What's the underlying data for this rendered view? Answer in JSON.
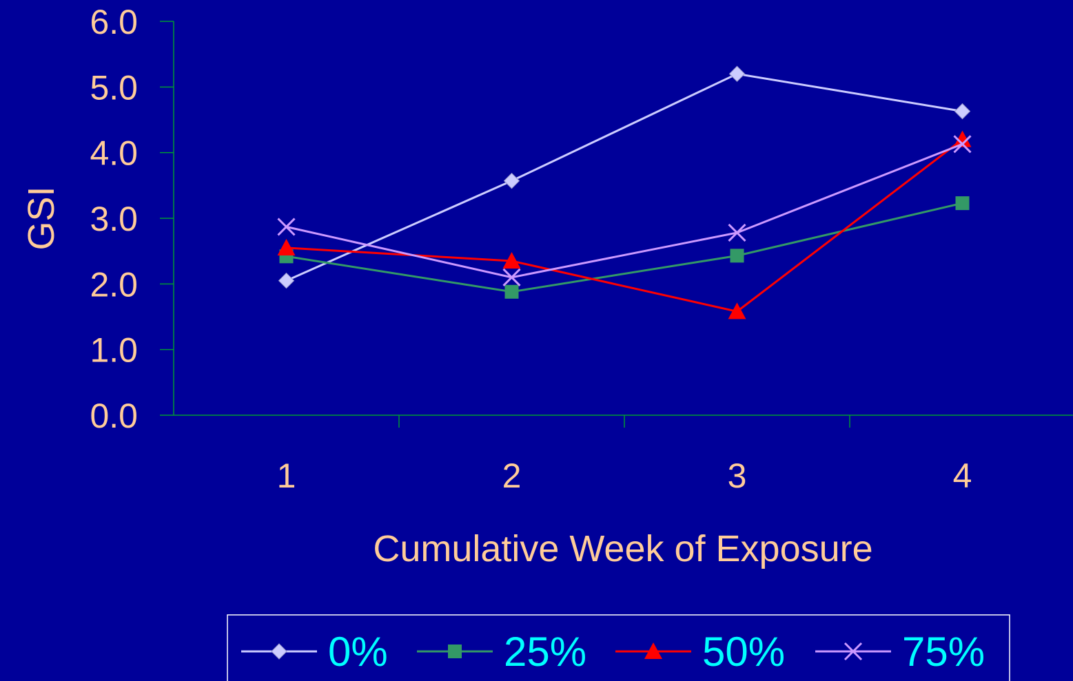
{
  "chart_data": {
    "type": "line",
    "xlabel": "Cumulative Week of Exposure",
    "ylabel": "GSI",
    "categories": [
      "1",
      "2",
      "3",
      "4"
    ],
    "ylim": [
      0,
      6
    ],
    "yticks": [
      "0.0",
      "1.0",
      "2.0",
      "3.0",
      "4.0",
      "5.0",
      "6.0"
    ],
    "grid": false,
    "legend_position": "bottom",
    "axis_color": "#009933",
    "series": [
      {
        "name": "0%",
        "values": [
          2.05,
          3.57,
          5.2,
          4.63
        ],
        "color": "#CCCCFF",
        "marker": "diamond"
      },
      {
        "name": "25%",
        "values": [
          2.42,
          1.88,
          2.43,
          3.23
        ],
        "color": "#339966",
        "marker": "square"
      },
      {
        "name": "50%",
        "values": [
          2.55,
          2.35,
          1.58,
          4.2
        ],
        "color": "#FF0000",
        "marker": "triangle"
      },
      {
        "name": "75%",
        "values": [
          2.87,
          2.1,
          2.78,
          4.13
        ],
        "color": "#CC99FF",
        "marker": "x"
      }
    ]
  }
}
